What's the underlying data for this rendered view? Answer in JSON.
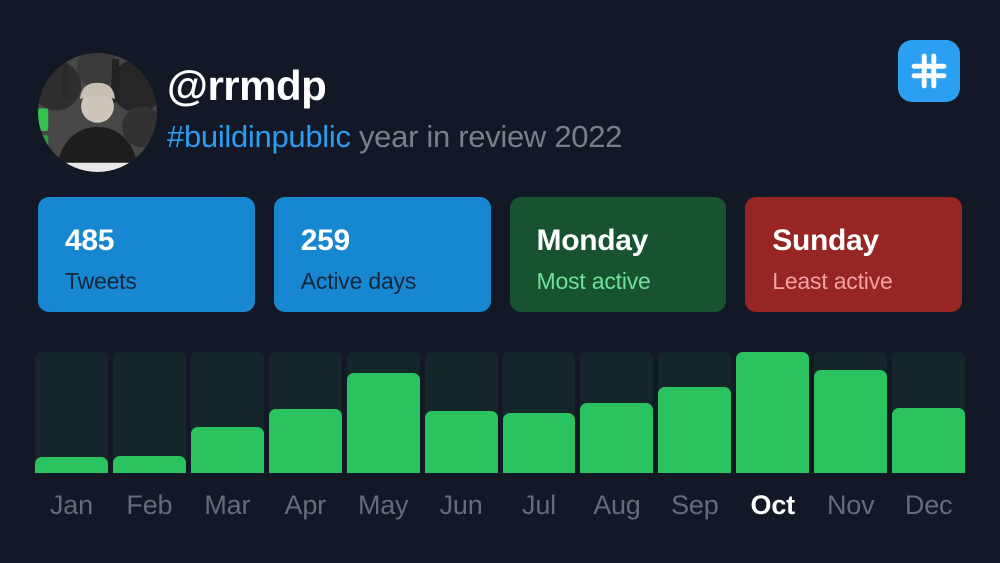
{
  "page": {
    "bg": "#121826"
  },
  "header": {
    "username": "@rrmdp",
    "subtitle_hashtag": "#buildinpublic",
    "subtitle_rest": " year in review 2022",
    "hashtag_color": "#2d9cf0",
    "subtitle_color": "#787e8a",
    "logo_bg": "#2ba0f2"
  },
  "stats": {
    "cards": [
      {
        "value": "485",
        "label": "Tweets",
        "bg": "#1787d2",
        "value_color": "#ffffff",
        "label_color": "#13263c"
      },
      {
        "value": "259",
        "label": "Active days",
        "bg": "#1787d2",
        "value_color": "#ffffff",
        "label_color": "#13263c"
      },
      {
        "value": "Monday",
        "label": "Most active",
        "bg": "#175231",
        "value_color": "#ffffff",
        "label_color": "#72e09d"
      },
      {
        "value": "Sunday",
        "label": "Least active",
        "bg": "#962523",
        "value_color": "#ffffff",
        "label_color": "#f2a2a5"
      }
    ]
  },
  "chart_data": {
    "type": "bar",
    "title": "",
    "categories": [
      "Jan",
      "Feb",
      "Mar",
      "Apr",
      "May",
      "Jun",
      "Jul",
      "Aug",
      "Sep",
      "Oct",
      "Nov",
      "Dec"
    ],
    "values": [
      13,
      14,
      38,
      53,
      83,
      51,
      50,
      58,
      71,
      100,
      85,
      54
    ],
    "values_unit": "percent_of_max_month",
    "highlighted_category": "Oct",
    "bar_color": "#2bc35f",
    "column_bg_color": "#15262b",
    "label_color": "#636c7c",
    "highlight_label_color": "#ffffff",
    "grid": false,
    "legend": false
  }
}
